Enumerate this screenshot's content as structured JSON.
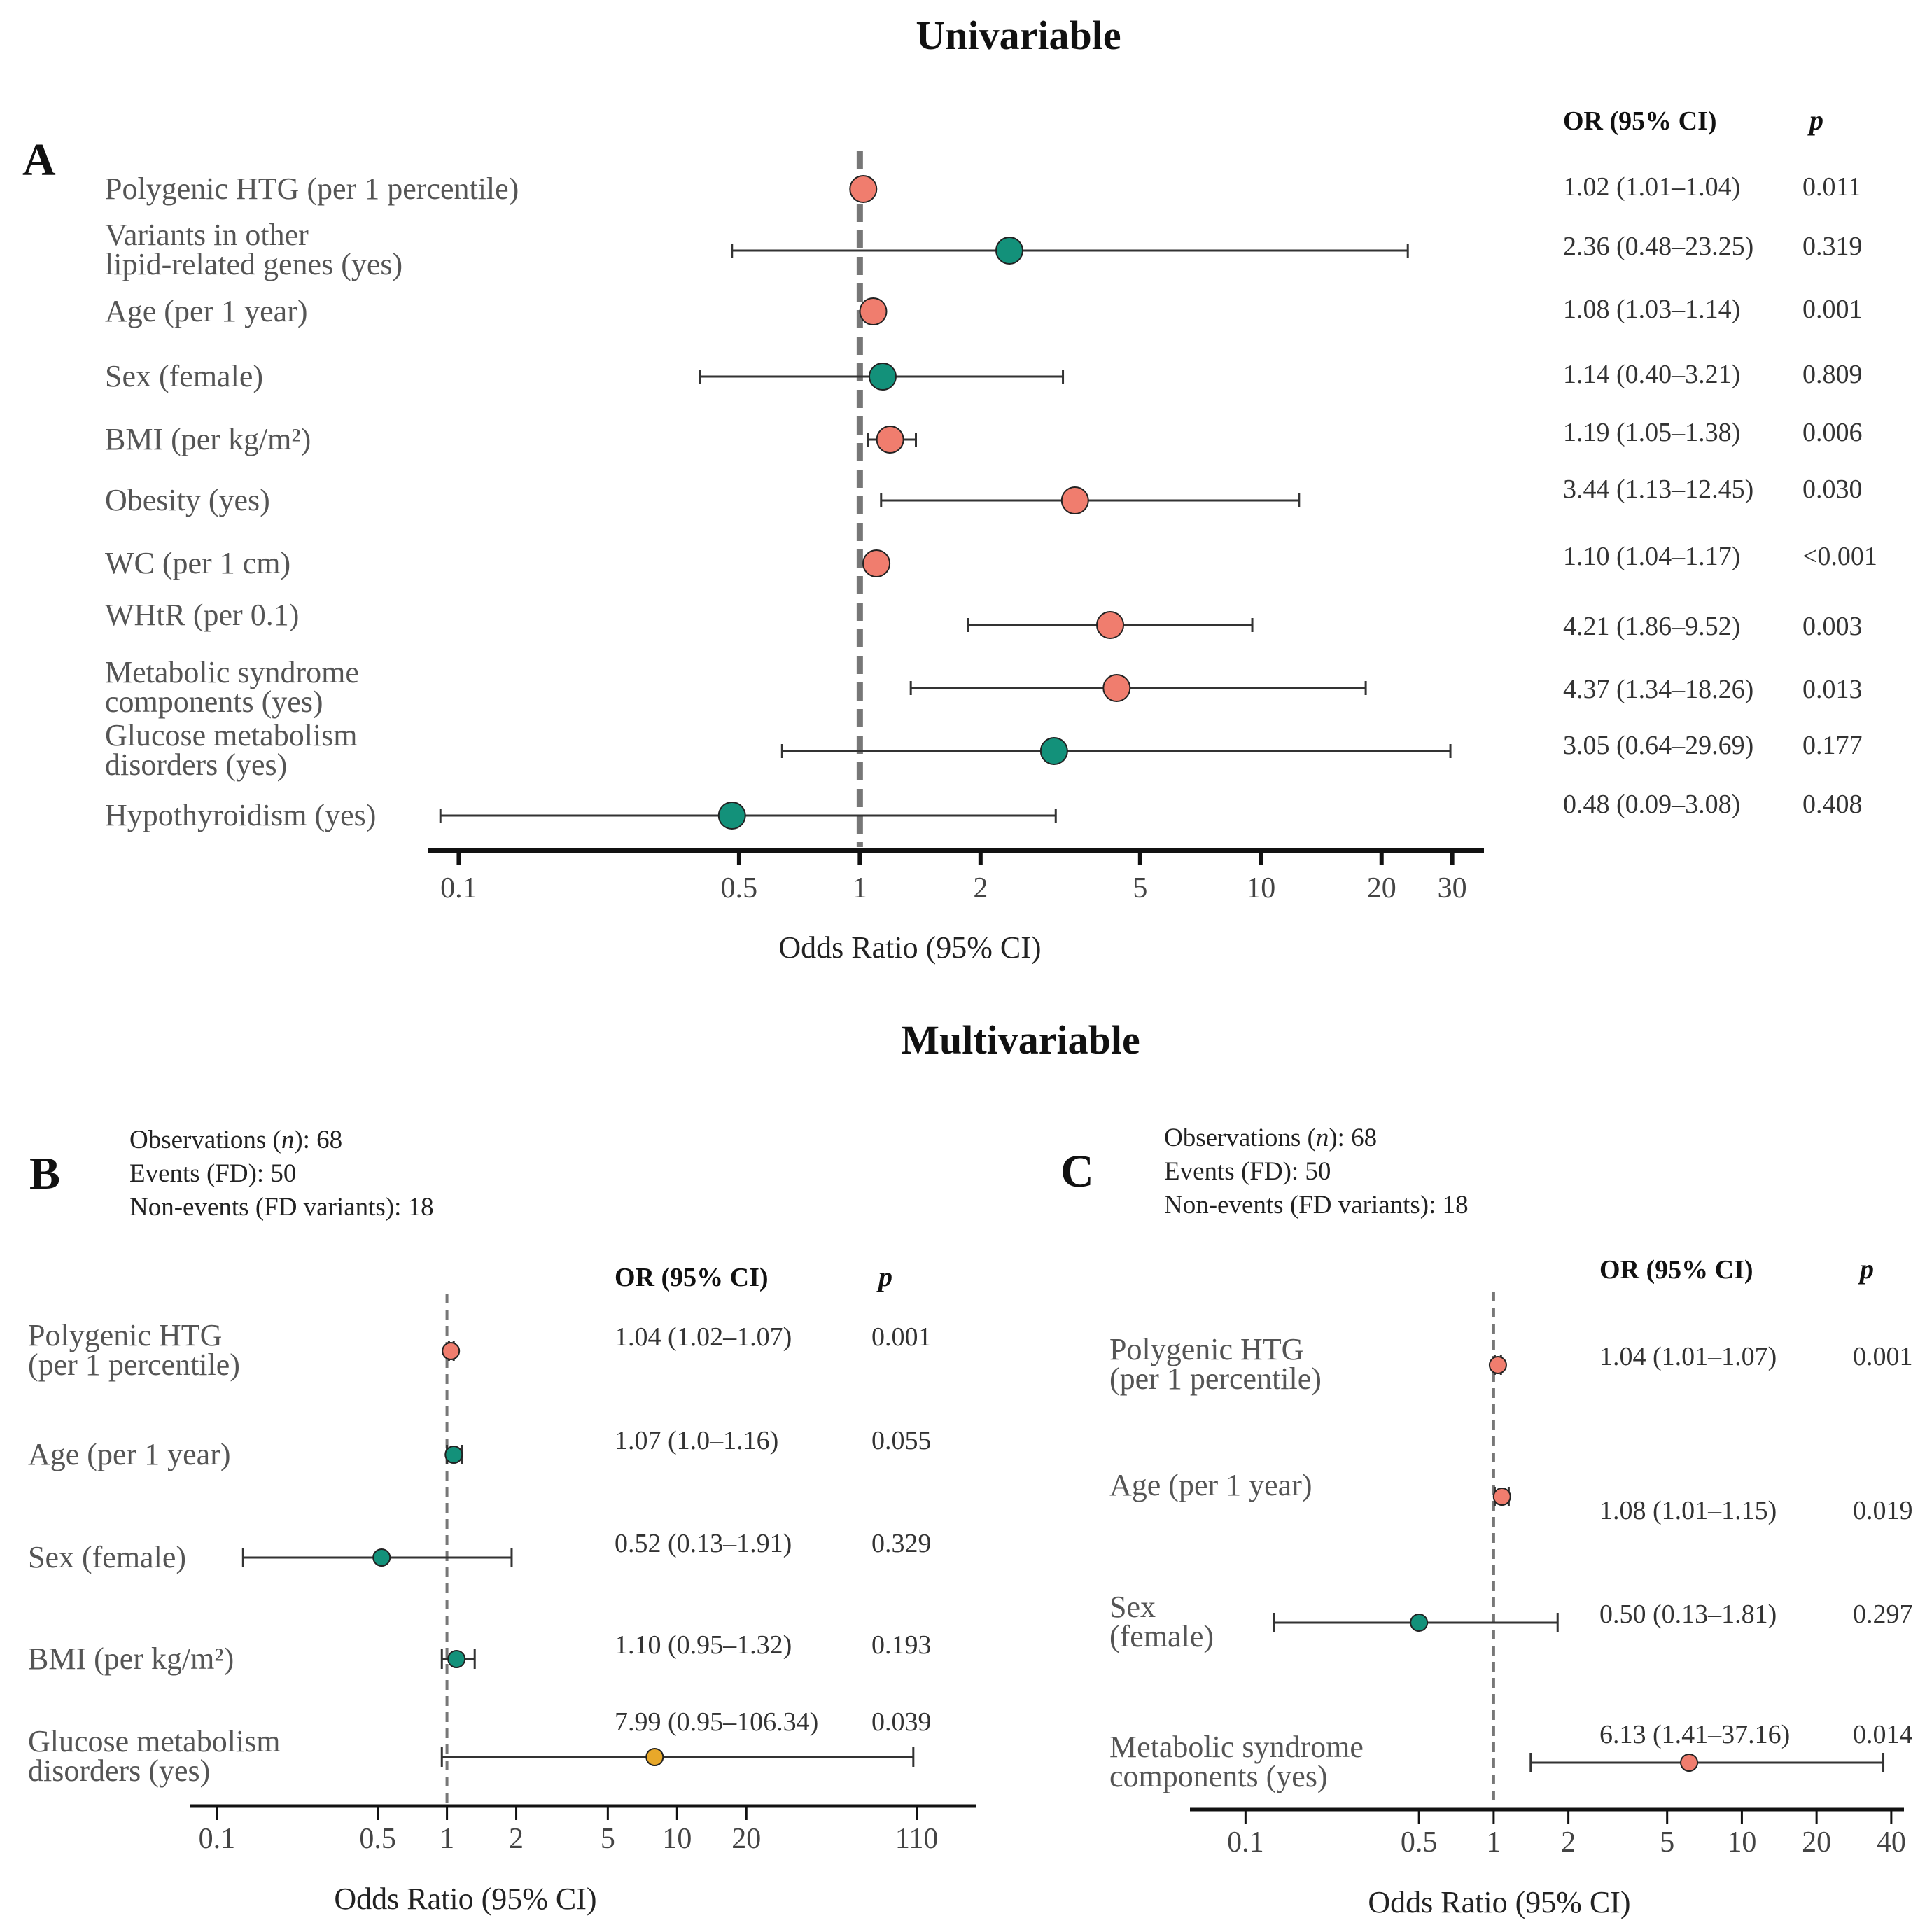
{
  "colors": {
    "significant": "#f07d6e",
    "nonsignificant": "#13917a",
    "highlight": "#e8a82a",
    "whisker": "#333333",
    "reference": "#777777"
  },
  "chart_data": [
    {
      "id": "A",
      "type": "forest",
      "section_title": "Univariable",
      "panel_label": "A",
      "xlabel": "Odds Ratio (95% CI)",
      "x_scale": "log",
      "xlim": [
        0.085,
        36
      ],
      "xticks": [
        "0.1",
        "0.5",
        "1",
        "2",
        "5",
        "10",
        "20",
        "30"
      ],
      "reference_line": 1,
      "columns": {
        "or_header": "OR (95% CI)",
        "p_header": "p"
      },
      "rows": [
        {
          "label": [
            "Polygenic HTG (per 1 percentile)"
          ],
          "or": 1.02,
          "lo": 1.01,
          "hi": 1.04,
          "ci_text": "1.02 (1.01–1.04)",
          "p_text": "0.011",
          "color": "significant"
        },
        {
          "label": [
            "Variants in other",
            "lipid-related genes (yes)"
          ],
          "or": 2.36,
          "lo": 0.48,
          "hi": 23.25,
          "ci_text": "2.36 (0.48–23.25)",
          "p_text": "0.319",
          "color": "nonsignificant"
        },
        {
          "label": [
            "Age (per 1 year)"
          ],
          "or": 1.08,
          "lo": 1.03,
          "hi": 1.14,
          "ci_text": "1.08 (1.03–1.14)",
          "p_text": "0.001",
          "color": "significant"
        },
        {
          "label": [
            "Sex (female)"
          ],
          "or": 1.14,
          "lo": 0.4,
          "hi": 3.21,
          "ci_text": "1.14 (0.40–3.21)",
          "p_text": "0.809",
          "color": "nonsignificant"
        },
        {
          "label": [
            "BMI (per kg/m²)"
          ],
          "or": 1.19,
          "lo": 1.05,
          "hi": 1.38,
          "ci_text": "1.19 (1.05–1.38)",
          "p_text": "0.006",
          "color": "significant"
        },
        {
          "label": [
            "Obesity (yes)"
          ],
          "or": 3.44,
          "lo": 1.13,
          "hi": 12.45,
          "ci_text": "3.44 (1.13–12.45)",
          "p_text": "0.030",
          "color": "significant"
        },
        {
          "label": [
            "WC (per 1 cm)"
          ],
          "or": 1.1,
          "lo": 1.04,
          "hi": 1.17,
          "ci_text": "1.10 (1.04–1.17)",
          "p_text": "<0.001",
          "color": "significant"
        },
        {
          "label": [
            "WHtR (per 0.1)"
          ],
          "or": 4.21,
          "lo": 1.86,
          "hi": 9.52,
          "ci_text": "4.21 (1.86–9.52)",
          "p_text": "0.003",
          "color": "significant"
        },
        {
          "label": [
            "Metabolic syndrome",
            "components (yes)"
          ],
          "or": 4.37,
          "lo": 1.34,
          "hi": 18.26,
          "ci_text": "4.37 (1.34–18.26)",
          "p_text": "0.013",
          "color": "significant"
        },
        {
          "label": [
            "Glucose metabolism",
            "disorders (yes)"
          ],
          "or": 3.05,
          "lo": 0.64,
          "hi": 29.69,
          "ci_text": "3.05 (0.64–29.69)",
          "p_text": "0.177",
          "color": "nonsignificant"
        },
        {
          "label": [
            "Hypothyroidism (yes)"
          ],
          "or": 0.48,
          "lo": 0.09,
          "hi": 3.08,
          "ci_text": "0.48 (0.09–3.08)",
          "p_text": "0.408",
          "color": "nonsignificant"
        }
      ]
    },
    {
      "id": "B",
      "type": "forest",
      "section_title": "Multivariable",
      "panel_label": "B",
      "info": [
        "Observations (n): 68",
        "Events (FD): 50",
        "Non-events (FD variants): 18"
      ],
      "xlabel": "Odds Ratio (95% CI)",
      "x_scale": "log",
      "xlim": [
        0.08,
        200
      ],
      "xticks": [
        "0.1",
        "0.5",
        "1",
        "2",
        "5",
        "10",
        "20",
        "110"
      ],
      "reference_line": 1,
      "columns": {
        "or_header": "OR (95% CI)",
        "p_header": "p"
      },
      "rows": [
        {
          "label": [
            "Polygenic HTG",
            "(per 1 percentile)"
          ],
          "or": 1.04,
          "lo": 1.02,
          "hi": 1.07,
          "ci_text": "1.04 (1.02–1.07)",
          "p_text": "0.001",
          "color": "significant"
        },
        {
          "label": [
            "Age (per 1 year)"
          ],
          "or": 1.07,
          "lo": 1.0,
          "hi": 1.16,
          "ci_text": "1.07 (1.0–1.16)",
          "p_text": "0.055",
          "color": "nonsignificant"
        },
        {
          "label": [
            "Sex (female)"
          ],
          "or": 0.52,
          "lo": 0.13,
          "hi": 1.91,
          "ci_text": "0.52 (0.13–1.91)",
          "p_text": "0.329",
          "color": "nonsignificant"
        },
        {
          "label": [
            "BMI (per kg/m²)"
          ],
          "or": 1.1,
          "lo": 0.95,
          "hi": 1.32,
          "ci_text": "1.10 (0.95–1.32)",
          "p_text": "0.193",
          "color": "nonsignificant"
        },
        {
          "label": [
            "Glucose metabolism",
            "disorders (yes)"
          ],
          "or": 7.99,
          "lo": 0.95,
          "hi": 106.34,
          "ci_text": "7.99 (0.95–106.34)",
          "p_text": "0.039",
          "color": "highlight"
        }
      ]
    },
    {
      "id": "C",
      "type": "forest",
      "panel_label": "C",
      "info": [
        "Observations (n): 68",
        "Events (FD): 50",
        "Non-events (FD variants): 18"
      ],
      "xlabel": "Odds Ratio (95% CI)",
      "x_scale": "log",
      "xlim": [
        0.08,
        45
      ],
      "xticks": [
        "0.1",
        "0.5",
        "1",
        "2",
        "5",
        "10",
        "20",
        "40"
      ],
      "reference_line": 1,
      "columns": {
        "or_header": "OR (95% CI)",
        "p_header": "p"
      },
      "rows": [
        {
          "label": [
            "Polygenic HTG",
            "(per 1 percentile)"
          ],
          "or": 1.04,
          "lo": 1.01,
          "hi": 1.07,
          "ci_text": "1.04 (1.01–1.07)",
          "p_text": "0.001",
          "color": "significant"
        },
        {
          "label": [
            "Age (per 1 year)"
          ],
          "or": 1.08,
          "lo": 1.01,
          "hi": 1.15,
          "ci_text": "1.08 (1.01–1.15)",
          "p_text": "0.019",
          "color": "significant"
        },
        {
          "label": [
            "Sex",
            "(female)"
          ],
          "or": 0.5,
          "lo": 0.13,
          "hi": 1.81,
          "ci_text": "0.50 (0.13–1.81)",
          "p_text": "0.297",
          "color": "nonsignificant"
        },
        {
          "label": [
            "Metabolic syndrome",
            "components (yes)"
          ],
          "or": 6.13,
          "lo": 1.41,
          "hi": 37.16,
          "ci_text": "6.13 (1.41–37.16)",
          "p_text": "0.014",
          "color": "significant"
        }
      ]
    }
  ]
}
